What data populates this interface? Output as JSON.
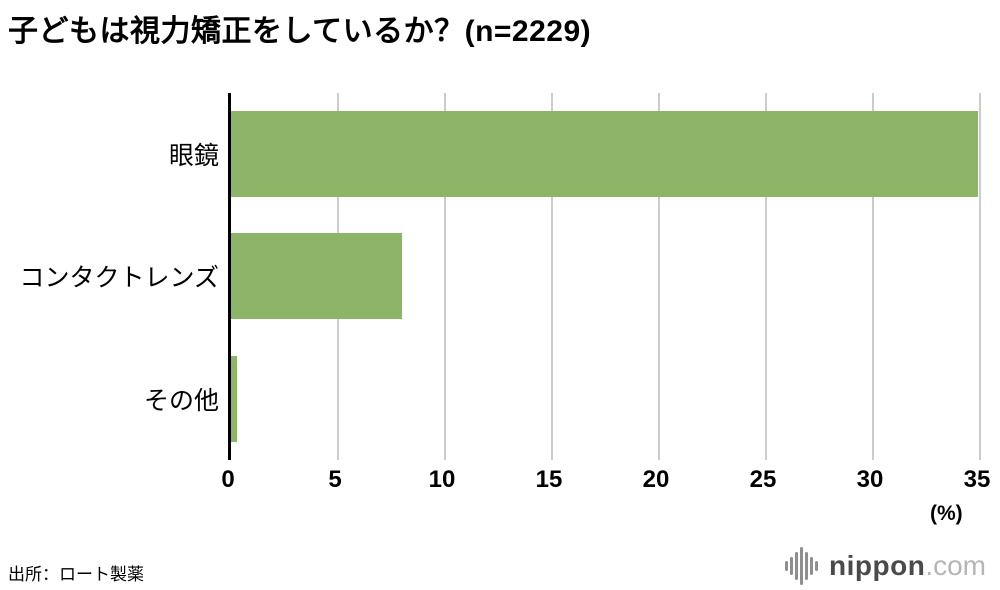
{
  "title": "子どもは視力矯正をしているか？(n=2229)",
  "source": "出所：ロート製薬",
  "logo": {
    "name": "nippon",
    "tld": ".com"
  },
  "colors": {
    "bar": "#8cb568",
    "gridline": "#cccccc",
    "axis": "#000000"
  },
  "chart_data": {
    "type": "bar",
    "orientation": "horizontal",
    "title": "子どもは視力矯正をしているか？(n=2229)",
    "categories": [
      "眼鏡",
      "コンタクトレンズ",
      "その他"
    ],
    "values": [
      34.9,
      8.0,
      0.3
    ],
    "xlabel": "(%)",
    "xlim": [
      0,
      35
    ],
    "xticks": [
      0,
      5,
      10,
      15,
      20,
      25,
      30,
      35
    ],
    "grid": true,
    "legend": false,
    "bar_color": "#8cb568"
  }
}
